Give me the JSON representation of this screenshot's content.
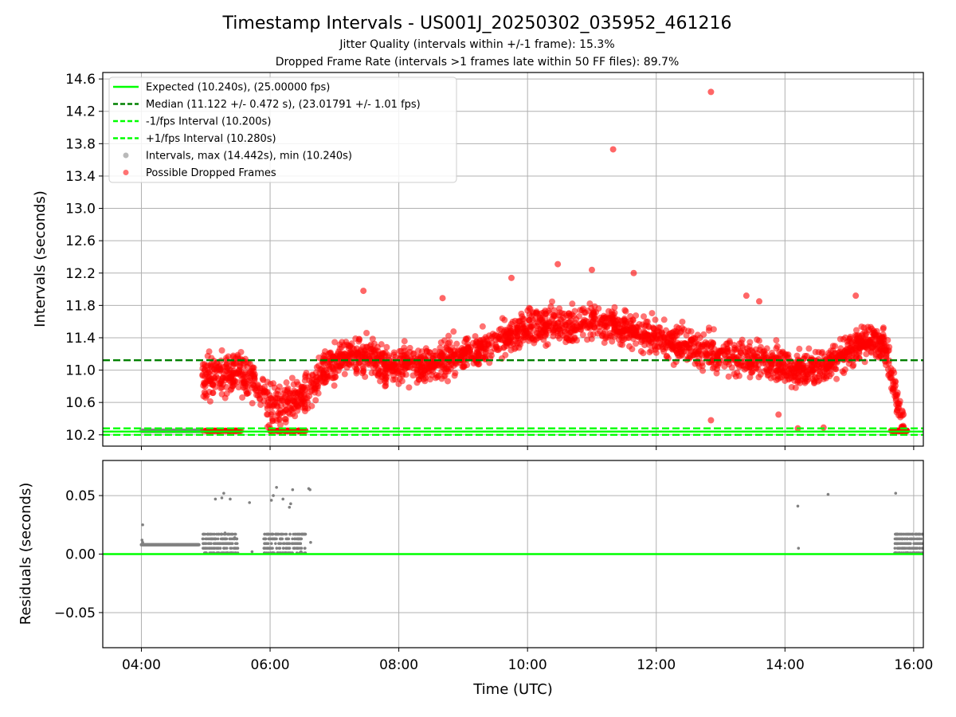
{
  "figure": {
    "title": "Timestamp Intervals - US001J_20250302_035952_461216",
    "subtitle_1": "Jitter Quality (intervals within +/-1 frame): 15.3%",
    "subtitle_2": "Dropped Frame Rate (intervals >1 frames late within 50 FF files): 89.7%"
  },
  "colors": {
    "expected": "#00ff00",
    "median": "#008000",
    "interval_band": "#00ff00",
    "intervals": "#808080",
    "dropped": "#ff0000",
    "grid": "#b0b0b0"
  },
  "chart_data": [
    {
      "type": "scatter",
      "panel": "intervals",
      "xlabel": "",
      "ylabel": "Intervals (seconds)",
      "x_unit": "hours UTC",
      "xlim": [
        3.4,
        16.15
      ],
      "ylim": [
        10.06,
        14.68
      ],
      "yticks": [
        10.2,
        10.6,
        11.0,
        11.4,
        11.8,
        12.2,
        12.6,
        13.0,
        13.4,
        13.8,
        14.2,
        14.6
      ],
      "ytick_labels": [
        "10.2",
        "10.6",
        "11.0",
        "11.4",
        "11.8",
        "12.2",
        "12.6",
        "13.0",
        "13.4",
        "13.8",
        "14.2",
        "14.6"
      ],
      "grid": true,
      "legend_position": "upper-left",
      "legend": [
        {
          "label": "Expected (10.240s), (25.00000 fps)",
          "style": "solid-line",
          "color": "#00ff00"
        },
        {
          "label": "Median (11.122 +/- 0.472 s), (23.01791 +/- 1.01 fps)",
          "style": "dashed-line",
          "color": "#008000"
        },
        {
          "label": "-1/fps Interval (10.200s)",
          "style": "dashed-line",
          "color": "#00ff00"
        },
        {
          "label": "+1/fps Interval (10.280s)",
          "style": "dashed-line",
          "color": "#00ff00"
        },
        {
          "label": "Intervals, max (14.442s), min (10.240s)",
          "style": "marker",
          "color": "#808080"
        },
        {
          "label": "Possible Dropped Frames",
          "style": "marker",
          "color": "#ff0000"
        }
      ],
      "reference_lines": {
        "expected": 10.24,
        "median": 11.122,
        "minus_one_fps": 10.2,
        "plus_one_fps": 10.28
      },
      "series": [
        {
          "name": "Possible Dropped Frames",
          "description_trend": [
            [
              4.95,
              10.95
            ],
            [
              5.2,
              10.9
            ],
            [
              5.5,
              11.0
            ],
            [
              5.75,
              10.85
            ],
            [
              6.0,
              10.55
            ],
            [
              6.3,
              10.6
            ],
            [
              6.6,
              10.7
            ],
            [
              6.9,
              11.05
            ],
            [
              7.2,
              11.15
            ],
            [
              7.5,
              11.2
            ],
            [
              7.8,
              11.05
            ],
            [
              8.2,
              11.05
            ],
            [
              8.6,
              11.1
            ],
            [
              9.0,
              11.2
            ],
            [
              9.4,
              11.3
            ],
            [
              9.8,
              11.45
            ],
            [
              10.2,
              11.55
            ],
            [
              10.6,
              11.55
            ],
            [
              11.0,
              11.6
            ],
            [
              11.4,
              11.55
            ],
            [
              11.8,
              11.45
            ],
            [
              12.2,
              11.35
            ],
            [
              12.6,
              11.25
            ],
            [
              13.0,
              11.2
            ],
            [
              13.4,
              11.15
            ],
            [
              13.8,
              11.1
            ],
            [
              14.2,
              11.0
            ],
            [
              14.6,
              11.05
            ],
            [
              15.0,
              11.25
            ],
            [
              15.3,
              11.4
            ],
            [
              15.55,
              11.3
            ],
            [
              15.7,
              10.75
            ],
            [
              15.8,
              10.4
            ]
          ],
          "outliers": [
            [
              12.85,
              14.44
            ],
            [
              11.33,
              13.73
            ],
            [
              7.45,
              11.98
            ],
            [
              10.47,
              12.31
            ],
            [
              11.0,
              12.24
            ],
            [
              11.65,
              12.2
            ],
            [
              13.6,
              11.85
            ],
            [
              13.4,
              11.92
            ],
            [
              15.1,
              11.92
            ],
            [
              12.85,
              10.38
            ],
            [
              14.2,
              10.28
            ],
            [
              14.6,
              10.29
            ],
            [
              13.9,
              10.45
            ],
            [
              8.68,
              11.89
            ],
            [
              9.75,
              12.14
            ]
          ],
          "at_expected_clusters": [
            [
              4.95,
              5.55
            ],
            [
              6.0,
              6.55
            ],
            [
              15.65,
              15.9
            ]
          ]
        },
        {
          "name": "Intervals, max (14.442s), min (10.240s)",
          "flat_segment": [
            [
              4.0,
              10.25
            ],
            [
              4.95,
              10.25
            ]
          ]
        }
      ]
    },
    {
      "type": "scatter",
      "panel": "residuals",
      "xlabel": "Time (UTC)",
      "ylabel": "Residuals (seconds)",
      "xlim": [
        3.4,
        16.15
      ],
      "ylim": [
        -0.08,
        0.08
      ],
      "yticks": [
        -0.05,
        0.0,
        0.05
      ],
      "ytick_labels": [
        "−0.05",
        "0.00",
        "0.05"
      ],
      "xticks": [
        4,
        6,
        8,
        10,
        12,
        14,
        16
      ],
      "xtick_labels": [
        "04:00",
        "06:00",
        "08:00",
        "10:00",
        "12:00",
        "14:00",
        "16:00"
      ],
      "grid": true,
      "zero_line": 0.0,
      "series": [
        {
          "name": "Residuals",
          "points": [
            [
              4.02,
              0.025
            ],
            [
              4.01,
              0.012
            ],
            [
              4.02,
              0.01
            ],
            [
              4.03,
              0.008
            ],
            [
              5.15,
              0.047
            ],
            [
              5.25,
              0.048
            ],
            [
              5.28,
              0.052
            ],
            [
              5.38,
              0.047
            ],
            [
              5.3,
              0.018
            ],
            [
              5.45,
              0.014
            ],
            [
              5.68,
              0.044
            ],
            [
              5.72,
              0.002
            ],
            [
              6.02,
              0.046
            ],
            [
              6.05,
              0.05
            ],
            [
              6.1,
              0.057
            ],
            [
              6.2,
              0.047
            ],
            [
              6.3,
              0.04
            ],
            [
              6.35,
              0.055
            ],
            [
              6.32,
              0.043
            ],
            [
              6.6,
              0.056
            ],
            [
              6.62,
              0.055
            ],
            [
              6.63,
              0.01
            ],
            [
              6.48,
              0.002
            ],
            [
              6.25,
              0.013
            ],
            [
              14.2,
              0.041
            ],
            [
              14.21,
              0.005
            ],
            [
              14.67,
              0.051
            ],
            [
              15.72,
              0.052
            ]
          ],
          "flat_band": {
            "x": [
              4.0,
              4.9
            ],
            "y": 0.008
          },
          "dense_bands": [
            {
              "x": [
                4.95,
                5.5
              ],
              "y": [
                0.001,
                0.018
              ]
            },
            {
              "x": [
                5.9,
                6.55
              ],
              "y": [
                0.001,
                0.018
              ]
            },
            {
              "x": [
                15.7,
                16.15
              ],
              "y": [
                0.001,
                0.018
              ]
            }
          ]
        }
      ]
    }
  ]
}
